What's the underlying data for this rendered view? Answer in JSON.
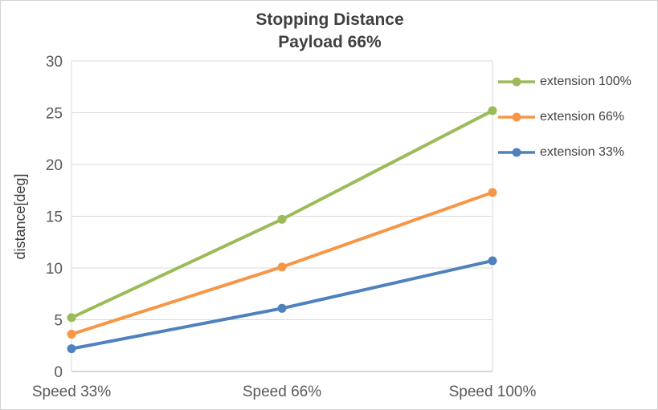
{
  "title": {
    "line1": "Stopping Distance",
    "line2": "Payload 66%"
  },
  "chart_data": {
    "type": "line",
    "categories": [
      "Speed 33%",
      "Speed 66%",
      "Speed 100%"
    ],
    "series": [
      {
        "name": "extension 100%",
        "color": "#9BBB59",
        "values": [
          5.2,
          14.7,
          25.2
        ]
      },
      {
        "name": "extension 66%",
        "color": "#F79646",
        "values": [
          3.6,
          10.1,
          17.3
        ]
      },
      {
        "name": "extension 33%",
        "color": "#4F81BD",
        "values": [
          2.2,
          6.1,
          10.7
        ]
      }
    ],
    "title": "Stopping Distance Payload 66%",
    "xlabel": "",
    "ylabel": "distance[deg]",
    "ylim": [
      0,
      30
    ],
    "ytick_step": 5,
    "grid": "horizontal",
    "legend_position": "right"
  },
  "colors": {
    "grid": "#D9D9D9",
    "axis": "#BFBFBF",
    "tick_text": "#595959",
    "title_text": "#404040"
  }
}
